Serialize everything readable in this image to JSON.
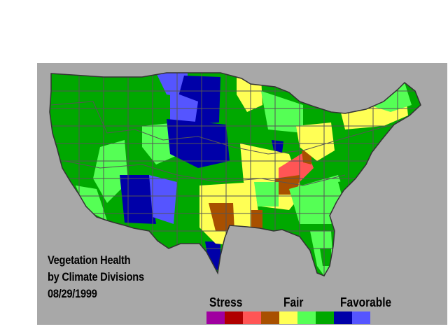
{
  "title_lines": [
    "Vegetation Health",
    "by Climate Divisions"
  ],
  "date": "08/29/1999",
  "legend": {
    "labels": [
      "Stress",
      "Fair",
      "Favorable"
    ],
    "colors": [
      "#a000a0",
      "#b00000",
      "#ff5555",
      "#a85000",
      "#ffff55",
      "#55ff55",
      "#00a800",
      "#0000a8",
      "#5555ff"
    ]
  },
  "colors": {
    "panel_background": "#a8a8a8",
    "division_border": "#555555",
    "outline": "#333333"
  }
}
